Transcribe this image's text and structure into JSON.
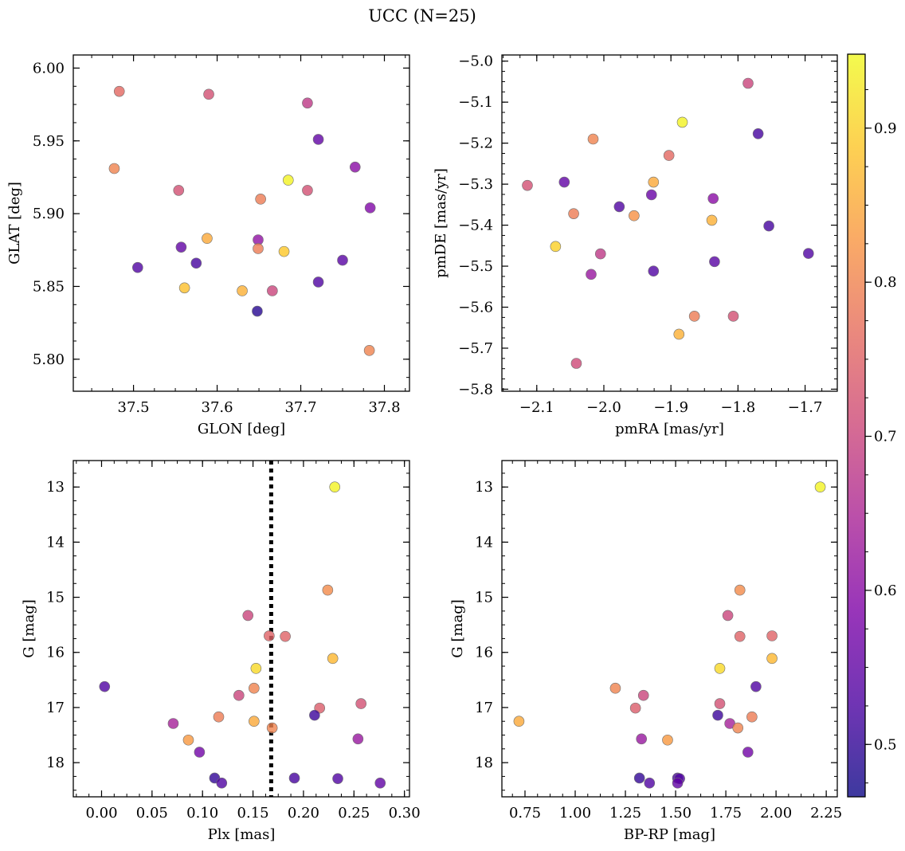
{
  "figure": {
    "title": "UCC (N=25)"
  },
  "colorbar": {
    "range": [
      0.466,
      0.948
    ],
    "ticks": [
      0.5,
      0.6,
      0.7,
      0.8,
      0.9
    ],
    "tick_labels": [
      "0.5",
      "0.6",
      "0.7",
      "0.8",
      "0.9"
    ],
    "colormap": "plasma"
  },
  "chart_data": [
    {
      "type": "scatter",
      "name": "sky-positions",
      "xlabel": "GLON [deg]",
      "ylabel": "GLAT [deg]",
      "xlim": [
        37.428,
        37.83
      ],
      "ylim": [
        5.778,
        6.009
      ],
      "xticks": [
        37.5,
        37.6,
        37.7,
        37.8
      ],
      "xtick_labels": [
        "37.5",
        "37.6",
        "37.7",
        "37.8"
      ],
      "yticks": [
        5.8,
        5.85,
        5.9,
        5.95,
        6.0
      ],
      "ytick_labels": [
        "5.80",
        "5.85",
        "5.90",
        "5.95",
        "6.00"
      ],
      "x_minor_step": 0.025,
      "y_minor_step": 0.0125,
      "invert_y": false,
      "points": [
        {
          "x": 37.483,
          "y": 5.984,
          "c": 0.76
        },
        {
          "x": 37.59,
          "y": 5.982,
          "c": 0.72
        },
        {
          "x": 37.708,
          "y": 5.976,
          "c": 0.68
        },
        {
          "x": 37.721,
          "y": 5.951,
          "c": 0.55
        },
        {
          "x": 37.765,
          "y": 5.932,
          "c": 0.6
        },
        {
          "x": 37.477,
          "y": 5.931,
          "c": 0.8
        },
        {
          "x": 37.685,
          "y": 5.923,
          "c": 0.94
        },
        {
          "x": 37.554,
          "y": 5.916,
          "c": 0.72
        },
        {
          "x": 37.708,
          "y": 5.916,
          "c": 0.72
        },
        {
          "x": 37.652,
          "y": 5.91,
          "c": 0.79
        },
        {
          "x": 37.783,
          "y": 5.904,
          "c": 0.59
        },
        {
          "x": 37.588,
          "y": 5.883,
          "c": 0.85
        },
        {
          "x": 37.649,
          "y": 5.882,
          "c": 0.61
        },
        {
          "x": 37.557,
          "y": 5.877,
          "c": 0.55
        },
        {
          "x": 37.649,
          "y": 5.876,
          "c": 0.79
        },
        {
          "x": 37.68,
          "y": 5.874,
          "c": 0.89
        },
        {
          "x": 37.75,
          "y": 5.868,
          "c": 0.54
        },
        {
          "x": 37.575,
          "y": 5.866,
          "c": 0.52
        },
        {
          "x": 37.505,
          "y": 5.863,
          "c": 0.53
        },
        {
          "x": 37.721,
          "y": 5.853,
          "c": 0.53
        },
        {
          "x": 37.561,
          "y": 5.849,
          "c": 0.88
        },
        {
          "x": 37.63,
          "y": 5.847,
          "c": 0.86
        },
        {
          "x": 37.666,
          "y": 5.847,
          "c": 0.7
        },
        {
          "x": 37.648,
          "y": 5.833,
          "c": 0.49
        },
        {
          "x": 37.782,
          "y": 5.806,
          "c": 0.8
        }
      ]
    },
    {
      "type": "scatter",
      "name": "proper-motions",
      "xlabel": "pmRA [mas/yr]",
      "ylabel": "pmDE [mas/yr]",
      "xlim": [
        -2.152,
        -1.652
      ],
      "ylim": [
        -5.805,
        -4.985
      ],
      "xticks": [
        -2.1,
        -2.0,
        -1.9,
        -1.8,
        -1.7
      ],
      "xtick_labels": [
        "−2.1",
        "−2.0",
        "−1.9",
        "−1.8",
        "−1.7"
      ],
      "yticks": [
        -5.8,
        -5.7,
        -5.6,
        -5.5,
        -5.4,
        -5.3,
        -5.2,
        -5.1,
        -5.0
      ],
      "ytick_labels": [
        "−5.8",
        "−5.7",
        "−5.6",
        "−5.5",
        "−5.4",
        "−5.3",
        "−5.2",
        "−5.1",
        "−5.0"
      ],
      "x_minor_step": 0.025,
      "y_minor_step": 0.025,
      "invert_y": false,
      "points": [
        {
          "x": -1.785,
          "y": -5.054,
          "c": 0.7
        },
        {
          "x": -1.883,
          "y": -5.149,
          "c": 0.94
        },
        {
          "x": -1.77,
          "y": -5.177,
          "c": 0.52
        },
        {
          "x": -2.016,
          "y": -5.19,
          "c": 0.8
        },
        {
          "x": -1.903,
          "y": -5.23,
          "c": 0.76
        },
        {
          "x": -1.926,
          "y": -5.295,
          "c": 0.85
        },
        {
          "x": -2.059,
          "y": -5.295,
          "c": 0.55
        },
        {
          "x": -2.114,
          "y": -5.303,
          "c": 0.72
        },
        {
          "x": -1.929,
          "y": -5.326,
          "c": 0.56
        },
        {
          "x": -1.837,
          "y": -5.335,
          "c": 0.6
        },
        {
          "x": -1.977,
          "y": -5.355,
          "c": 0.53
        },
        {
          "x": -2.045,
          "y": -5.372,
          "c": 0.79
        },
        {
          "x": -1.955,
          "y": -5.377,
          "c": 0.82
        },
        {
          "x": -1.839,
          "y": -5.388,
          "c": 0.86
        },
        {
          "x": -1.754,
          "y": -5.402,
          "c": 0.52
        },
        {
          "x": -2.072,
          "y": -5.452,
          "c": 0.9
        },
        {
          "x": -1.695,
          "y": -5.469,
          "c": 0.53
        },
        {
          "x": -2.005,
          "y": -5.47,
          "c": 0.68
        },
        {
          "x": -1.835,
          "y": -5.489,
          "c": 0.54
        },
        {
          "x": -1.926,
          "y": -5.512,
          "c": 0.53
        },
        {
          "x": -2.019,
          "y": -5.52,
          "c": 0.62
        },
        {
          "x": -1.865,
          "y": -5.622,
          "c": 0.79
        },
        {
          "x": -1.807,
          "y": -5.622,
          "c": 0.72
        },
        {
          "x": -1.888,
          "y": -5.666,
          "c": 0.86
        },
        {
          "x": -2.041,
          "y": -5.737,
          "c": 0.71
        }
      ]
    },
    {
      "type": "scatter",
      "name": "g-vs-parallax",
      "xlabel": "Plx [mas]",
      "ylabel": "G [mag]",
      "xlim": [
        -0.028,
        0.305
      ],
      "ylim": [
        12.52,
        18.62
      ],
      "xticks": [
        0.0,
        0.05,
        0.1,
        0.15,
        0.2,
        0.25,
        0.3
      ],
      "xtick_labels": [
        "0.00",
        "0.05",
        "0.10",
        "0.15",
        "0.20",
        "0.25",
        "0.30"
      ],
      "yticks": [
        13,
        14,
        15,
        16,
        17,
        18
      ],
      "ytick_labels": [
        "13",
        "14",
        "15",
        "16",
        "17",
        "18"
      ],
      "x_minor_step": 0.0125,
      "y_minor_step": 0.25,
      "invert_y": true,
      "vline": 0.168,
      "points": [
        {
          "x": 0.231,
          "y": 13.0,
          "c": 0.94
        },
        {
          "x": 0.224,
          "y": 14.87,
          "c": 0.81
        },
        {
          "x": 0.145,
          "y": 15.33,
          "c": 0.7
        },
        {
          "x": 0.166,
          "y": 15.7,
          "c": 0.75
        },
        {
          "x": 0.182,
          "y": 15.71,
          "c": 0.75
        },
        {
          "x": 0.229,
          "y": 16.11,
          "c": 0.87
        },
        {
          "x": 0.153,
          "y": 16.29,
          "c": 0.91
        },
        {
          "x": 0.003,
          "y": 16.62,
          "c": 0.53
        },
        {
          "x": 0.151,
          "y": 16.65,
          "c": 0.8
        },
        {
          "x": 0.136,
          "y": 16.78,
          "c": 0.7
        },
        {
          "x": 0.257,
          "y": 16.93,
          "c": 0.72
        },
        {
          "x": 0.216,
          "y": 17.01,
          "c": 0.74
        },
        {
          "x": 0.211,
          "y": 17.14,
          "c": 0.51
        },
        {
          "x": 0.116,
          "y": 17.17,
          "c": 0.79
        },
        {
          "x": 0.151,
          "y": 17.25,
          "c": 0.85
        },
        {
          "x": 0.071,
          "y": 17.29,
          "c": 0.64
        },
        {
          "x": 0.169,
          "y": 17.37,
          "c": 0.8
        },
        {
          "x": 0.254,
          "y": 17.57,
          "c": 0.62
        },
        {
          "x": 0.086,
          "y": 17.59,
          "c": 0.83
        },
        {
          "x": 0.097,
          "y": 17.81,
          "c": 0.57
        },
        {
          "x": 0.112,
          "y": 18.28,
          "c": 0.5
        },
        {
          "x": 0.191,
          "y": 18.28,
          "c": 0.52
        },
        {
          "x": 0.234,
          "y": 18.29,
          "c": 0.53
        },
        {
          "x": 0.119,
          "y": 18.37,
          "c": 0.53
        },
        {
          "x": 0.276,
          "y": 18.37,
          "c": 0.55
        }
      ]
    },
    {
      "type": "scatter",
      "name": "colour-magnitude",
      "xlabel": "BP-RP [mag]",
      "ylabel": "G [mag]",
      "xlim": [
        0.635,
        2.305
      ],
      "ylim": [
        12.52,
        18.62
      ],
      "xticks": [
        0.75,
        1.0,
        1.25,
        1.5,
        1.75,
        2.0,
        2.25
      ],
      "xtick_labels": [
        "0.75",
        "1.00",
        "1.25",
        "1.50",
        "1.75",
        "2.00",
        "2.25"
      ],
      "yticks": [
        13,
        14,
        15,
        16,
        17,
        18
      ],
      "ytick_labels": [
        "13",
        "14",
        "15",
        "16",
        "17",
        "18"
      ],
      "x_minor_step": 0.0625,
      "y_minor_step": 0.25,
      "invert_y": true,
      "points": [
        {
          "x": 2.22,
          "y": 13.0,
          "c": 0.94
        },
        {
          "x": 1.82,
          "y": 14.87,
          "c": 0.81
        },
        {
          "x": 1.76,
          "y": 15.33,
          "c": 0.7
        },
        {
          "x": 1.82,
          "y": 15.71,
          "c": 0.75
        },
        {
          "x": 1.98,
          "y": 15.7,
          "c": 0.75
        },
        {
          "x": 1.98,
          "y": 16.11,
          "c": 0.87
        },
        {
          "x": 1.72,
          "y": 16.29,
          "c": 0.91
        },
        {
          "x": 1.9,
          "y": 16.62,
          "c": 0.53
        },
        {
          "x": 1.2,
          "y": 16.65,
          "c": 0.8
        },
        {
          "x": 1.34,
          "y": 16.78,
          "c": 0.7
        },
        {
          "x": 1.72,
          "y": 16.93,
          "c": 0.72
        },
        {
          "x": 1.3,
          "y": 17.01,
          "c": 0.74
        },
        {
          "x": 1.71,
          "y": 17.14,
          "c": 0.51
        },
        {
          "x": 1.88,
          "y": 17.17,
          "c": 0.79
        },
        {
          "x": 0.72,
          "y": 17.25,
          "c": 0.85
        },
        {
          "x": 1.77,
          "y": 17.29,
          "c": 0.64
        },
        {
          "x": 1.81,
          "y": 17.37,
          "c": 0.8
        },
        {
          "x": 1.33,
          "y": 17.57,
          "c": 0.62
        },
        {
          "x": 1.46,
          "y": 17.59,
          "c": 0.83
        },
        {
          "x": 1.86,
          "y": 17.81,
          "c": 0.57
        },
        {
          "x": 1.32,
          "y": 18.28,
          "c": 0.5
        },
        {
          "x": 1.51,
          "y": 18.28,
          "c": 0.52
        },
        {
          "x": 1.52,
          "y": 18.29,
          "c": 0.53
        },
        {
          "x": 1.37,
          "y": 18.37,
          "c": 0.53
        },
        {
          "x": 1.51,
          "y": 18.37,
          "c": 0.55
        }
      ]
    }
  ]
}
